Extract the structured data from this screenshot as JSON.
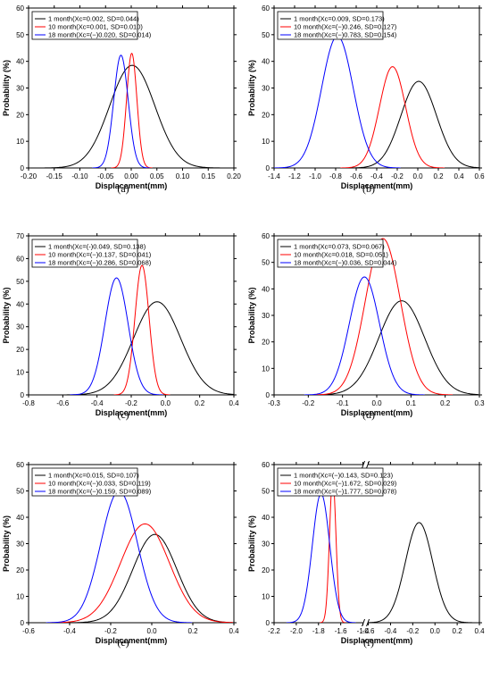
{
  "colors": {
    "series1": "#000000",
    "series2": "#ff0000",
    "series3": "#0000ff"
  },
  "chart_data": [
    {
      "type": "line",
      "panel_label": "(a)",
      "xlabel": "Displacement(mm)",
      "ylabel": "Probability (%)",
      "xlim": [
        -0.2,
        0.2
      ],
      "ylim": [
        0,
        60
      ],
      "xticks": [
        "-0.20",
        "-0.15",
        "-0.10",
        "-0.05",
        "0.00",
        "0.05",
        "0.10",
        "0.15",
        "0.20"
      ],
      "xtick_values": [
        -0.2,
        -0.15,
        -0.1,
        -0.05,
        0,
        0.05,
        0.1,
        0.15,
        0.2
      ],
      "yticks": [
        "0",
        "10",
        "20",
        "30",
        "40",
        "50",
        "60"
      ],
      "ytick_values": [
        0,
        10,
        20,
        30,
        40,
        50,
        60
      ],
      "legend_position": "top-left",
      "series": [
        {
          "name": "1 month(Xc=0.002, SD=0.044)",
          "xc": 0.002,
          "sd": 0.044,
          "peak": 38.5
        },
        {
          "name": "10 month(Xc=0.001, SD=0.010)",
          "xc": 0.001,
          "sd": 0.01,
          "peak": 43.0
        },
        {
          "name": "18 month(Xc=(−)0.020, SD=0.014)",
          "xc": -0.02,
          "sd": 0.014,
          "peak": 42.3
        }
      ]
    },
    {
      "type": "line",
      "panel_label": "(b)",
      "xlabel": "Displacement(mm)",
      "ylabel": "Probability (%)",
      "xlim": [
        -1.4,
        0.6
      ],
      "ylim": [
        0,
        60
      ],
      "xticks": [
        "-1.4",
        "-1.2",
        "-1.0",
        "-0.8",
        "-0.6",
        "-0.4",
        "-0.2",
        "0.0",
        "0.2",
        "0.4",
        "0.6"
      ],
      "xtick_values": [
        -1.4,
        -1.2,
        -1.0,
        -0.8,
        -0.6,
        -0.4,
        -0.2,
        0,
        0.2,
        0.4,
        0.6
      ],
      "yticks": [
        "0",
        "10",
        "20",
        "30",
        "40",
        "50",
        "60"
      ],
      "ytick_values": [
        0,
        10,
        20,
        30,
        40,
        50,
        60
      ],
      "legend_position": "top-left",
      "series": [
        {
          "name": "1 month(Xc=0.009, SD=0.173)",
          "xc": 0.009,
          "sd": 0.173,
          "peak": 32.5
        },
        {
          "name": "10 month(Xc=(−)0.246, SD=0.127)",
          "xc": -0.246,
          "sd": 0.127,
          "peak": 38.0
        },
        {
          "name": "18 month(Xc=(−)0.783, SD=0.154)",
          "xc": -0.783,
          "sd": 0.154,
          "peak": 49.5
        }
      ]
    },
    {
      "type": "line",
      "panel_label": "(c)",
      "xlabel": "Displacement(mm)",
      "ylabel": "Probability (%)",
      "xlim": [
        -0.8,
        0.4
      ],
      "ylim": [
        0,
        70
      ],
      "xticks": [
        "-0.8",
        "-0.6",
        "-0.4",
        "-0.2",
        "0.0",
        "0.2",
        "0.4"
      ],
      "xtick_values": [
        -0.8,
        -0.6,
        -0.4,
        -0.2,
        0,
        0.2,
        0.4
      ],
      "yticks": [
        "0",
        "10",
        "20",
        "30",
        "40",
        "50",
        "60",
        "70"
      ],
      "ytick_values": [
        0,
        10,
        20,
        30,
        40,
        50,
        60,
        70
      ],
      "legend_position": "top-left",
      "series": [
        {
          "name": "1 month(Xc=(-)0.049, SD=0.138)",
          "xc": -0.049,
          "sd": 0.138,
          "peak": 41.0
        },
        {
          "name": "10 month(Xc=(−)0.137, SD=0.041)",
          "xc": -0.137,
          "sd": 0.041,
          "peak": 57.0
        },
        {
          "name": "18 month(Xc=(−)0.286, SD=0.068)",
          "xc": -0.286,
          "sd": 0.068,
          "peak": 51.5
        }
      ]
    },
    {
      "type": "line",
      "panel_label": "(d)",
      "xlabel": "Displacement(mm)",
      "ylabel": "Probability (%)",
      "xlim": [
        -0.3,
        0.3
      ],
      "ylim": [
        0,
        60
      ],
      "xticks": [
        "-0.3",
        "-0.2",
        "-0.1",
        "0.0",
        "0.1",
        "0.2",
        "0.3"
      ],
      "xtick_values": [
        -0.3,
        -0.2,
        -0.1,
        0,
        0.1,
        0.2,
        0.3
      ],
      "yticks": [
        "0",
        "10",
        "20",
        "30",
        "40",
        "50",
        "60"
      ],
      "ytick_values": [
        0,
        10,
        20,
        30,
        40,
        50,
        60
      ],
      "legend_position": "top-left",
      "series": [
        {
          "name": "1 month(Xc=0.073, SD=0.067)",
          "xc": 0.073,
          "sd": 0.067,
          "peak": 35.5
        },
        {
          "name": "10 month(Xc=0.018, SD=0.051)",
          "xc": 0.018,
          "sd": 0.051,
          "peak": 59.0
        },
        {
          "name": "18 month(Xc=(−)0.036, SD=0.044)",
          "xc": -0.036,
          "sd": 0.044,
          "peak": 44.5
        }
      ]
    },
    {
      "type": "line",
      "panel_label": "(e)",
      "xlabel": "Displacement(mm)",
      "ylabel": "Probability (%)",
      "xlim": [
        -0.6,
        0.4
      ],
      "ylim": [
        0,
        60
      ],
      "xticks": [
        "-0.6",
        "-0.4",
        "-0.2",
        "0.0",
        "0.2",
        "0.4"
      ],
      "xtick_values": [
        -0.6,
        -0.4,
        -0.2,
        0,
        0.2,
        0.4
      ],
      "yticks": [
        "0",
        "10",
        "20",
        "30",
        "40",
        "50",
        "60"
      ],
      "ytick_values": [
        0,
        10,
        20,
        30,
        40,
        50,
        60
      ],
      "legend_position": "top-left",
      "series": [
        {
          "name": "1 month(Xc=0.015, SD=0.107)",
          "xc": 0.015,
          "sd": 0.107,
          "peak": 33.5
        },
        {
          "name": "10 month(Xc=(−)0.033, SD=0.119)",
          "xc": -0.033,
          "sd": 0.119,
          "peak": 37.5
        },
        {
          "name": "18 month(Xc=(−)0.159, SD=0.089)",
          "xc": -0.159,
          "sd": 0.089,
          "peak": 50.0
        }
      ]
    },
    {
      "type": "line",
      "panel_label": "(f)",
      "xlabel": "Displacement(mm)",
      "ylabel": "Probability (%)",
      "xlim": [
        -2.2,
        0.4
      ],
      "ylim": [
        0,
        60
      ],
      "axis_break": [
        -1.4,
        -0.6
      ],
      "xticks": [
        "-2.2",
        "-2.0",
        "-1.8",
        "-1.6",
        "-1.4",
        "-0.6",
        "-0.4",
        "-0.2",
        "0.0",
        "0.2",
        "0.4"
      ],
      "xtick_values": [
        -2.2,
        -2.0,
        -1.8,
        -1.6,
        -1.4,
        -0.6,
        -0.4,
        -0.2,
        0,
        0.2,
        0.4
      ],
      "yticks": [
        "0",
        "10",
        "20",
        "30",
        "40",
        "50",
        "60"
      ],
      "ytick_values": [
        0,
        10,
        20,
        30,
        40,
        50,
        60
      ],
      "legend_position": "top-left",
      "series": [
        {
          "name": "1 month(Xc=(−)0.143, SD=0.123)",
          "xc": -0.143,
          "sd": 0.123,
          "peak": 38.0
        },
        {
          "name": "10 month(Xc=(−)1.672, SD=0.029)",
          "xc": -1.672,
          "sd": 0.029,
          "peak": 55.0
        },
        {
          "name": "18 month(Xc=(−)1.777, SD=0.078)",
          "xc": -1.777,
          "sd": 0.078,
          "peak": 49.0
        }
      ]
    }
  ]
}
